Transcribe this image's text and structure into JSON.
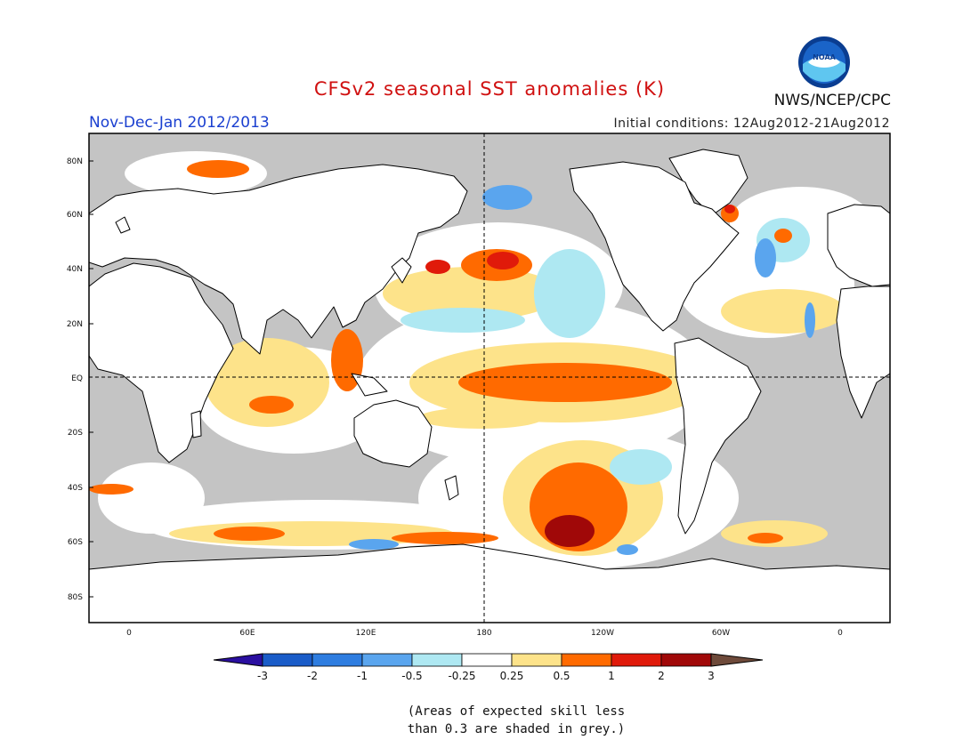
{
  "header": {
    "title": "CFSv2 seasonal SST anomalies (K)",
    "season": "Nov-Dec-Jan 2012/2013",
    "initial_conditions": "Initial conditions: 12Aug2012-21Aug2012",
    "agency": "NWS/NCEP/CPC",
    "logo_text": "NOAA"
  },
  "axes": {
    "lat_labels": [
      "80N",
      "60N",
      "40N",
      "20N",
      "EQ",
      "20S",
      "40S",
      "60S",
      "80S"
    ],
    "lon_labels": [
      "0",
      "60E",
      "120E",
      "180",
      "120W",
      "60W",
      "0"
    ]
  },
  "legend": {
    "labels": [
      "-3",
      "-2",
      "-1",
      "-0.5",
      "-0.25",
      "0.25",
      "0.5",
      "1",
      "2",
      "3"
    ],
    "colors": [
      "#2a0fa0",
      "#1a5cc8",
      "#2e7de0",
      "#5aa5ee",
      "#aee8f2",
      "#ffffff",
      "#fde38a",
      "#ff6a00",
      "#e01a0a",
      "#a00808",
      "#6e4a3a"
    ]
  },
  "footnote": {
    "line1": "(Areas of expected skill less",
    "line2": "than 0.3 are shaded in grey.)"
  },
  "colors": {
    "grey_mask": "#c4c4c4",
    "land": "#ffffff",
    "coast": "#000000"
  }
}
